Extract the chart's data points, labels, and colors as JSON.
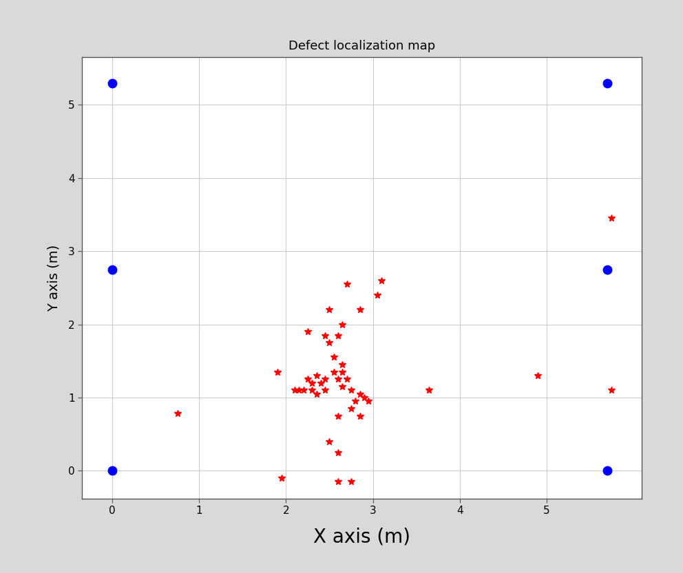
{
  "title": "Defect localization map",
  "xlabel": "X axis (m)",
  "ylabel": "Y axis (m)",
  "xlim": [
    -0.35,
    6.1
  ],
  "ylim": [
    -0.38,
    5.65
  ],
  "xticks": [
    0,
    1,
    2,
    3,
    4,
    5
  ],
  "yticks": [
    0,
    1,
    2,
    3,
    4,
    5
  ],
  "background_color": "#d9d9d9",
  "plot_background": "#ffffff",
  "sensors": [
    [
      0.0,
      5.3
    ],
    [
      5.7,
      5.3
    ],
    [
      0.0,
      2.75
    ],
    [
      5.7,
      2.75
    ],
    [
      0.0,
      0.0
    ],
    [
      5.7,
      0.0
    ]
  ],
  "defects": [
    [
      2.25,
      1.9
    ],
    [
      1.9,
      1.35
    ],
    [
      2.5,
      2.2
    ],
    [
      2.7,
      2.55
    ],
    [
      3.1,
      2.6
    ],
    [
      3.05,
      2.4
    ],
    [
      2.85,
      2.2
    ],
    [
      2.65,
      2.0
    ],
    [
      2.45,
      1.85
    ],
    [
      2.6,
      1.85
    ],
    [
      2.5,
      1.75
    ],
    [
      2.55,
      1.55
    ],
    [
      2.65,
      1.45
    ],
    [
      2.6,
      1.25
    ],
    [
      2.7,
      1.25
    ],
    [
      2.65,
      1.15
    ],
    [
      2.75,
      1.1
    ],
    [
      2.85,
      1.05
    ],
    [
      2.9,
      1.0
    ],
    [
      2.95,
      0.95
    ],
    [
      2.8,
      0.95
    ],
    [
      2.75,
      0.85
    ],
    [
      2.85,
      0.75
    ],
    [
      2.6,
      0.75
    ],
    [
      2.5,
      0.4
    ],
    [
      2.65,
      1.35
    ],
    [
      2.55,
      1.35
    ],
    [
      2.45,
      1.25
    ],
    [
      2.4,
      1.2
    ],
    [
      2.3,
      1.2
    ],
    [
      2.45,
      1.1
    ],
    [
      2.35,
      1.05
    ],
    [
      2.3,
      1.1
    ],
    [
      2.2,
      1.1
    ],
    [
      2.15,
      1.1
    ],
    [
      2.1,
      1.1
    ],
    [
      2.25,
      1.25
    ],
    [
      2.35,
      1.3
    ],
    [
      2.6,
      0.25
    ],
    [
      2.6,
      -0.15
    ],
    [
      2.75,
      -0.15
    ],
    [
      1.95,
      -0.1
    ],
    [
      5.75,
      3.45
    ],
    [
      3.65,
      1.1
    ],
    [
      4.9,
      1.3
    ],
    [
      5.75,
      1.1
    ],
    [
      0.75,
      0.78
    ]
  ],
  "title_fontsize": 13,
  "xlabel_fontsize": 20,
  "ylabel_fontsize": 14,
  "tick_fontsize": 11
}
